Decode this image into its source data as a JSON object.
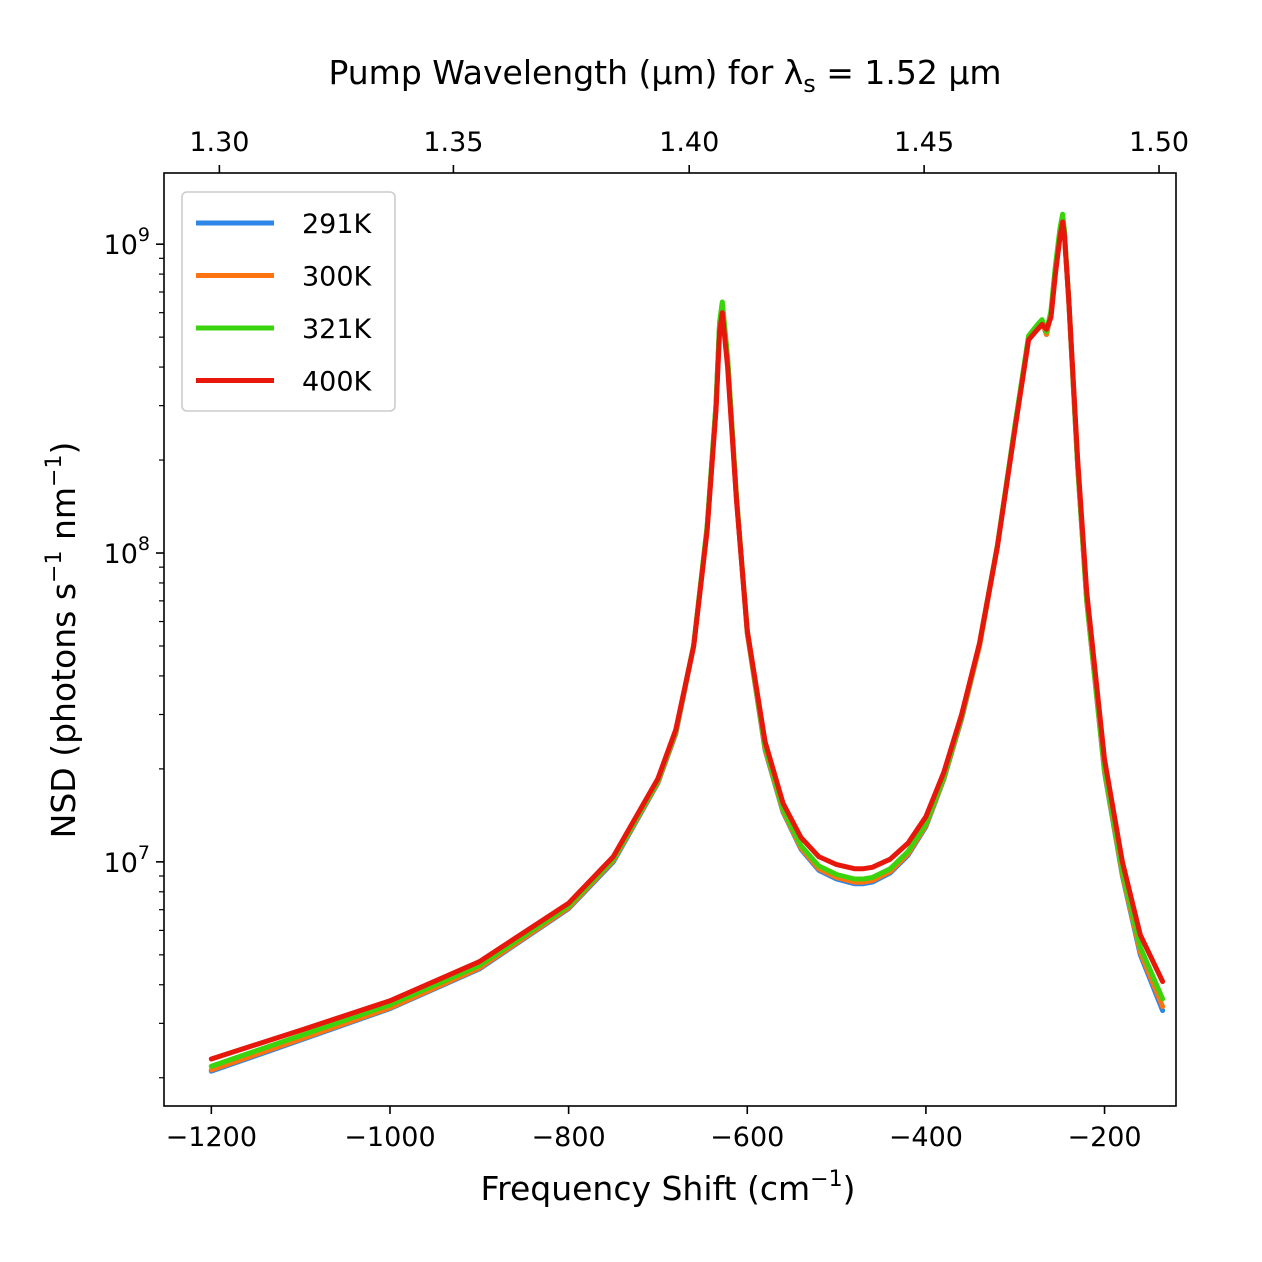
{
  "chart_data": {
    "type": "line",
    "y_scale": "log",
    "title": "Pump Wavelength (μm) for λ",
    "title_subscript": "s",
    "title_suffix": " = 1.52 μm",
    "xlabel": "Frequency Shift (cm",
    "xlabel_sup": "−1",
    "xlabel_close": ")",
    "ylabel_prefix": "NSD (photons s",
    "ylabel_sup1": "−1",
    "ylabel_mid": " nm",
    "ylabel_sup2": "−1",
    "ylabel_close": ")",
    "xlim": [
      -1253,
      -120
    ],
    "ylim": [
      1620000.0,
      1700000000.0
    ],
    "x_ticks": [
      -1200,
      -1000,
      -800,
      -600,
      -400,
      -200
    ],
    "x_tick_labels": [
      "−1200",
      "−1000",
      "−800",
      "−600",
      "−400",
      "−200"
    ],
    "y_ticks": [
      10000000.0,
      100000000.0,
      1000000000.0
    ],
    "y_tick_labels": [
      {
        "base": "10",
        "exp": "7"
      },
      {
        "base": "10",
        "exp": "8"
      },
      {
        "base": "10",
        "exp": "9"
      }
    ],
    "top_axis": {
      "label": "Pump Wavelength (μm)",
      "ticks": [
        {
          "value": -1191,
          "label": "1.30"
        },
        {
          "value": -929,
          "label": "1.35"
        },
        {
          "value": -665,
          "label": "1.40"
        },
        {
          "value": -402,
          "label": "1.45"
        },
        {
          "value": -139,
          "label": "1.50"
        }
      ]
    },
    "legend": {
      "position": "top-left"
    },
    "series": [
      {
        "name": "291K",
        "color": "#2e86e6",
        "x": [
          -1200,
          -1100,
          -1000,
          -900,
          -800,
          -750,
          -700,
          -680,
          -660,
          -645,
          -635,
          -631,
          -628,
          -622,
          -612,
          -600,
          -580,
          -560,
          -540,
          -520,
          -500,
          -480,
          -470,
          -460,
          -440,
          -420,
          -400,
          -380,
          -360,
          -340,
          -320,
          -300,
          -285,
          -275,
          -270,
          -265,
          -260,
          -255,
          -250,
          -247,
          -245,
          -240,
          -230,
          -220,
          -200,
          -180,
          -160,
          -135
        ],
        "y": [
          2100000.0,
          2650000.0,
          3350000.0,
          4500000.0,
          7050000.0,
          10000000.0,
          18000000.0,
          26000000.0,
          50000000.0,
          120000000.0,
          300000000.0,
          550000000.0,
          640000000.0,
          420000000.0,
          150000000.0,
          55000000.0,
          23000000.0,
          14500000.0,
          11000000.0,
          9400000.0,
          8800000.0,
          8500000.0,
          8500000.0,
          8600000.0,
          9200000.0,
          10500000.0,
          13000000.0,
          18500000.0,
          29000000.0,
          50000000.0,
          105000000.0,
          260000000.0,
          500000000.0,
          540000000.0,
          560000000.0,
          510000000.0,
          600000000.0,
          840000000.0,
          1100000000.0,
          1200000000.0,
          1100000000.0,
          650000000.0,
          190000000.0,
          70000000.0,
          19500000.0,
          9000000.0,
          5000000.0,
          3300000.0
        ]
      },
      {
        "name": "300K",
        "color": "#ff7410",
        "x": [
          -1200,
          -1100,
          -1000,
          -900,
          -800,
          -750,
          -700,
          -680,
          -660,
          -645,
          -635,
          -631,
          -628,
          -622,
          -612,
          -600,
          -580,
          -560,
          -540,
          -520,
          -500,
          -480,
          -470,
          -460,
          -440,
          -420,
          -400,
          -380,
          -360,
          -340,
          -320,
          -300,
          -285,
          -275,
          -270,
          -265,
          -260,
          -255,
          -250,
          -247,
          -245,
          -240,
          -230,
          -220,
          -200,
          -180,
          -160,
          -135
        ],
        "y": [
          2120000.0,
          2670000.0,
          3370000.0,
          4530000.0,
          7100000.0,
          10100000.0,
          18100000.0,
          26200000.0,
          50200000.0,
          120000000.0,
          300000000.0,
          550000000.0,
          640000000.0,
          420000000.0,
          150000000.0,
          55000000.0,
          23200000.0,
          14600000.0,
          11100000.0,
          9500000.0,
          8900000.0,
          8600000.0,
          8600000.0,
          8700000.0,
          9300000.0,
          10600000.0,
          13100000.0,
          18600000.0,
          29200000.0,
          50000000.0,
          105000000.0,
          260000000.0,
          500000000.0,
          540000000.0,
          560000000.0,
          510000000.0,
          600000000.0,
          840000000.0,
          1100000000.0,
          1200000000.0,
          1100000000.0,
          650000000.0,
          190000000.0,
          70000000.0,
          19700000.0,
          9100000.0,
          5100000.0,
          3400000.0
        ]
      },
      {
        "name": "321K",
        "color": "#3bd40c",
        "x": [
          -1200,
          -1100,
          -1000,
          -900,
          -800,
          -750,
          -700,
          -680,
          -660,
          -645,
          -635,
          -631,
          -628,
          -622,
          -612,
          -600,
          -580,
          -560,
          -540,
          -520,
          -500,
          -480,
          -470,
          -460,
          -440,
          -420,
          -400,
          -380,
          -360,
          -340,
          -320,
          -300,
          -285,
          -275,
          -270,
          -265,
          -260,
          -255,
          -250,
          -247,
          -245,
          -240,
          -230,
          -220,
          -200,
          -180,
          -160,
          -135
        ],
        "y": [
          2180000.0,
          2740000.0,
          3450000.0,
          4620000.0,
          7200000.0,
          10200000.0,
          18300000.0,
          26500000.0,
          50500000.0,
          122000000.0,
          305000000.0,
          560000000.0,
          650000000.0,
          430000000.0,
          152000000.0,
          56000000.0,
          23600000.0,
          14800000.0,
          11300000.0,
          9700000.0,
          9100000.0,
          8800000.0,
          8800000.0,
          8900000.0,
          9500000.0,
          10800000.0,
          13300000.0,
          18800000.0,
          29500000.0,
          51000000.0,
          106000000.0,
          262000000.0,
          505000000.0,
          550000000.0,
          570000000.0,
          520000000.0,
          610000000.0,
          850000000.0,
          1120000000.0,
          1250000000.0,
          1120000000.0,
          660000000.0,
          192000000.0,
          71000000.0,
          20000000.0,
          9300000.0,
          5300000.0,
          3600000.0
        ]
      },
      {
        "name": "400K",
        "color": "#e8170c",
        "x": [
          -1200,
          -1100,
          -1000,
          -900,
          -800,
          -750,
          -700,
          -680,
          -660,
          -645,
          -635,
          -631,
          -628,
          -622,
          -612,
          -600,
          -580,
          -560,
          -540,
          -520,
          -500,
          -480,
          -470,
          -460,
          -440,
          -420,
          -400,
          -380,
          -360,
          -340,
          -320,
          -300,
          -285,
          -275,
          -270,
          -265,
          -260,
          -255,
          -250,
          -247,
          -245,
          -240,
          -230,
          -220,
          -200,
          -180,
          -160,
          -135
        ],
        "y": [
          2300000.0,
          2850000.0,
          3550000.0,
          4750000.0,
          7350000.0,
          10400000.0,
          18600000.0,
          26800000.0,
          50000000.0,
          118000000.0,
          290000000.0,
          520000000.0,
          600000000.0,
          400000000.0,
          148000000.0,
          56000000.0,
          24500000.0,
          15500000.0,
          12000000.0,
          10400000.0,
          9800000.0,
          9500000.0,
          9500000.0,
          9600000.0,
          10200000.0,
          11500000.0,
          14000000.0,
          19500000.0,
          30000000.0,
          51000000.0,
          105000000.0,
          255000000.0,
          490000000.0,
          530000000.0,
          550000000.0,
          530000000.0,
          580000000.0,
          800000000.0,
          1050000000.0,
          1180000000.0,
          1080000000.0,
          660000000.0,
          200000000.0,
          75000000.0,
          21500000.0,
          10000000.0,
          5800000.0,
          4100000.0
        ]
      }
    ]
  }
}
